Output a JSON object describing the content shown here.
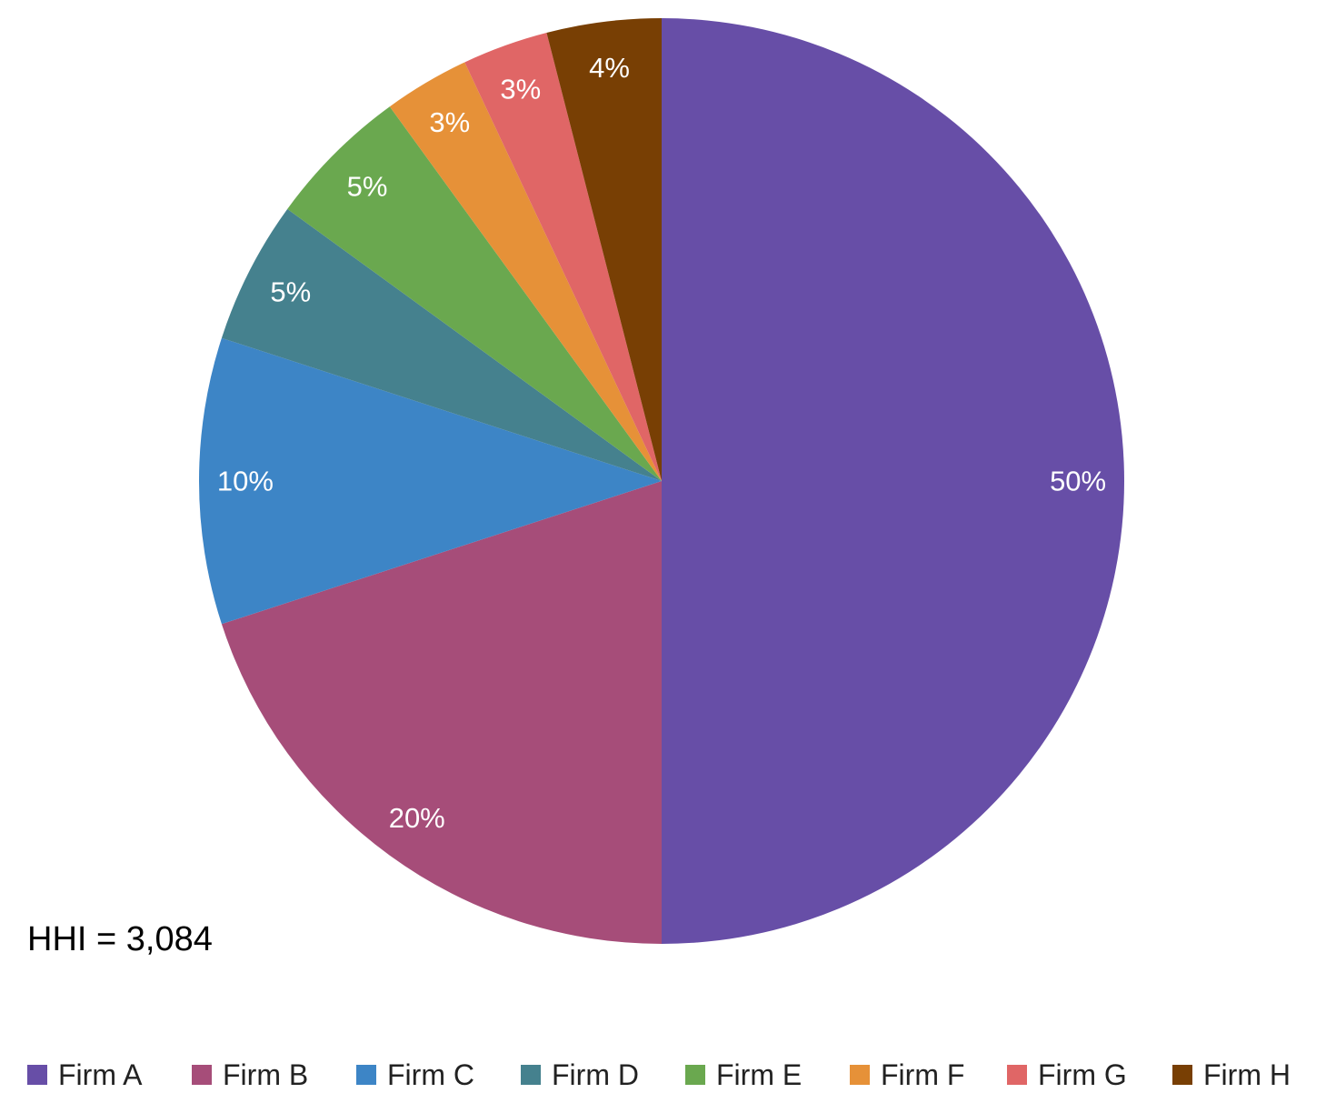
{
  "chart_data": {
    "type": "pie",
    "categories": [
      "Firm A",
      "Firm B",
      "Firm C",
      "Firm D",
      "Firm E",
      "Firm F",
      "Firm G",
      "Firm H"
    ],
    "values": [
      50,
      20,
      10,
      5,
      5,
      3,
      3,
      4
    ],
    "value_labels": [
      "50%",
      "20%",
      "10%",
      "5%",
      "5%",
      "3%",
      "3%",
      "4%"
    ],
    "colors": [
      "#674EA7",
      "#A64D79",
      "#3D85C6",
      "#45818E",
      "#6AA84F",
      "#E69138",
      "#E06666",
      "#783F04"
    ],
    "start_angle_deg": 0,
    "direction": "clockwise",
    "legend_position": "bottom",
    "annotation": "HHI = 3,084"
  }
}
